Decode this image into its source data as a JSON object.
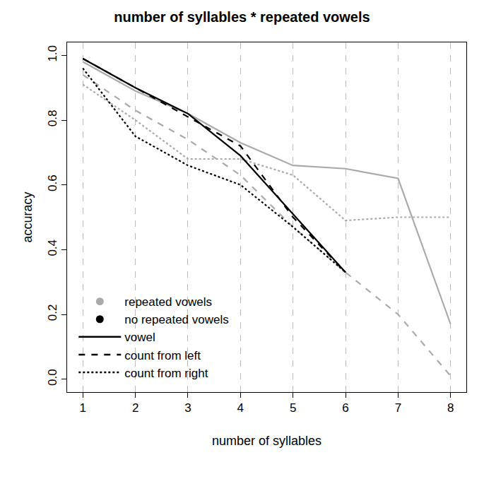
{
  "chart_data": {
    "type": "line",
    "title": "number of syllables * repeated vowels",
    "x_label": "number of syllables",
    "y_label": "accuracy",
    "xlim": [
      0.7,
      8.3
    ],
    "ylim": [
      -0.04,
      1.04
    ],
    "xticks": [
      1,
      2,
      3,
      4,
      5,
      6,
      7,
      8
    ],
    "yticks": [
      {
        "value": 0,
        "label": "0.0"
      },
      {
        "value": 0.2,
        "label": "0.2"
      },
      {
        "value": 0.4,
        "label": "0.4"
      },
      {
        "value": 0.6,
        "label": "0.6"
      },
      {
        "value": 0.8,
        "label": "0.8"
      },
      {
        "value": 1,
        "label": "1.0"
      }
    ],
    "grid": "x",
    "legend": "bottom left",
    "groups": [
      {
        "name": "repeated vowels",
        "color": "#aaaaaa",
        "marker": "circle",
        "series": [
          {
            "name": "vowel",
            "line_style": "solid",
            "x": [
              1,
              2,
              3,
              4,
              5,
              6,
              7,
              8
            ],
            "values": [
              0.98,
              0.89,
              0.82,
              0.73,
              0.66,
              0.65,
              0.62,
              0.17
            ]
          },
          {
            "name": "count from left",
            "line_style": "dashed",
            "x": [
              1,
              2,
              3,
              4,
              5,
              6,
              7,
              8
            ],
            "values": [
              0.94,
              0.83,
              0.74,
              0.63,
              0.47,
              0.33,
              0.2,
              0.01
            ]
          },
          {
            "name": "count from right",
            "line_style": "dotted",
            "x": [
              1,
              2,
              3,
              4,
              5,
              6,
              7,
              8
            ],
            "values": [
              0.91,
              0.8,
              0.68,
              0.68,
              0.63,
              0.49,
              0.5,
              0.5
            ]
          }
        ]
      },
      {
        "name": "no repeated vowels",
        "color": "#000000",
        "marker": "circle",
        "series": [
          {
            "name": "vowel",
            "line_style": "solid",
            "x": [
              1,
              2,
              3,
              4,
              5,
              6
            ],
            "values": [
              0.99,
              0.9,
              0.82,
              0.69,
              0.51,
              0.33
            ]
          },
          {
            "name": "count from left",
            "line_style": "dashed",
            "x": [
              1,
              2,
              3,
              4,
              5,
              6
            ],
            "values": [
              0.99,
              0.9,
              0.81,
              0.72,
              0.5,
              0.33
            ]
          },
          {
            "name": "count from right",
            "line_style": "dotted",
            "x": [
              1,
              2,
              3,
              4,
              5,
              6
            ],
            "values": [
              0.96,
              0.75,
              0.66,
              0.6,
              0.47,
              0.33
            ]
          }
        ]
      }
    ]
  }
}
